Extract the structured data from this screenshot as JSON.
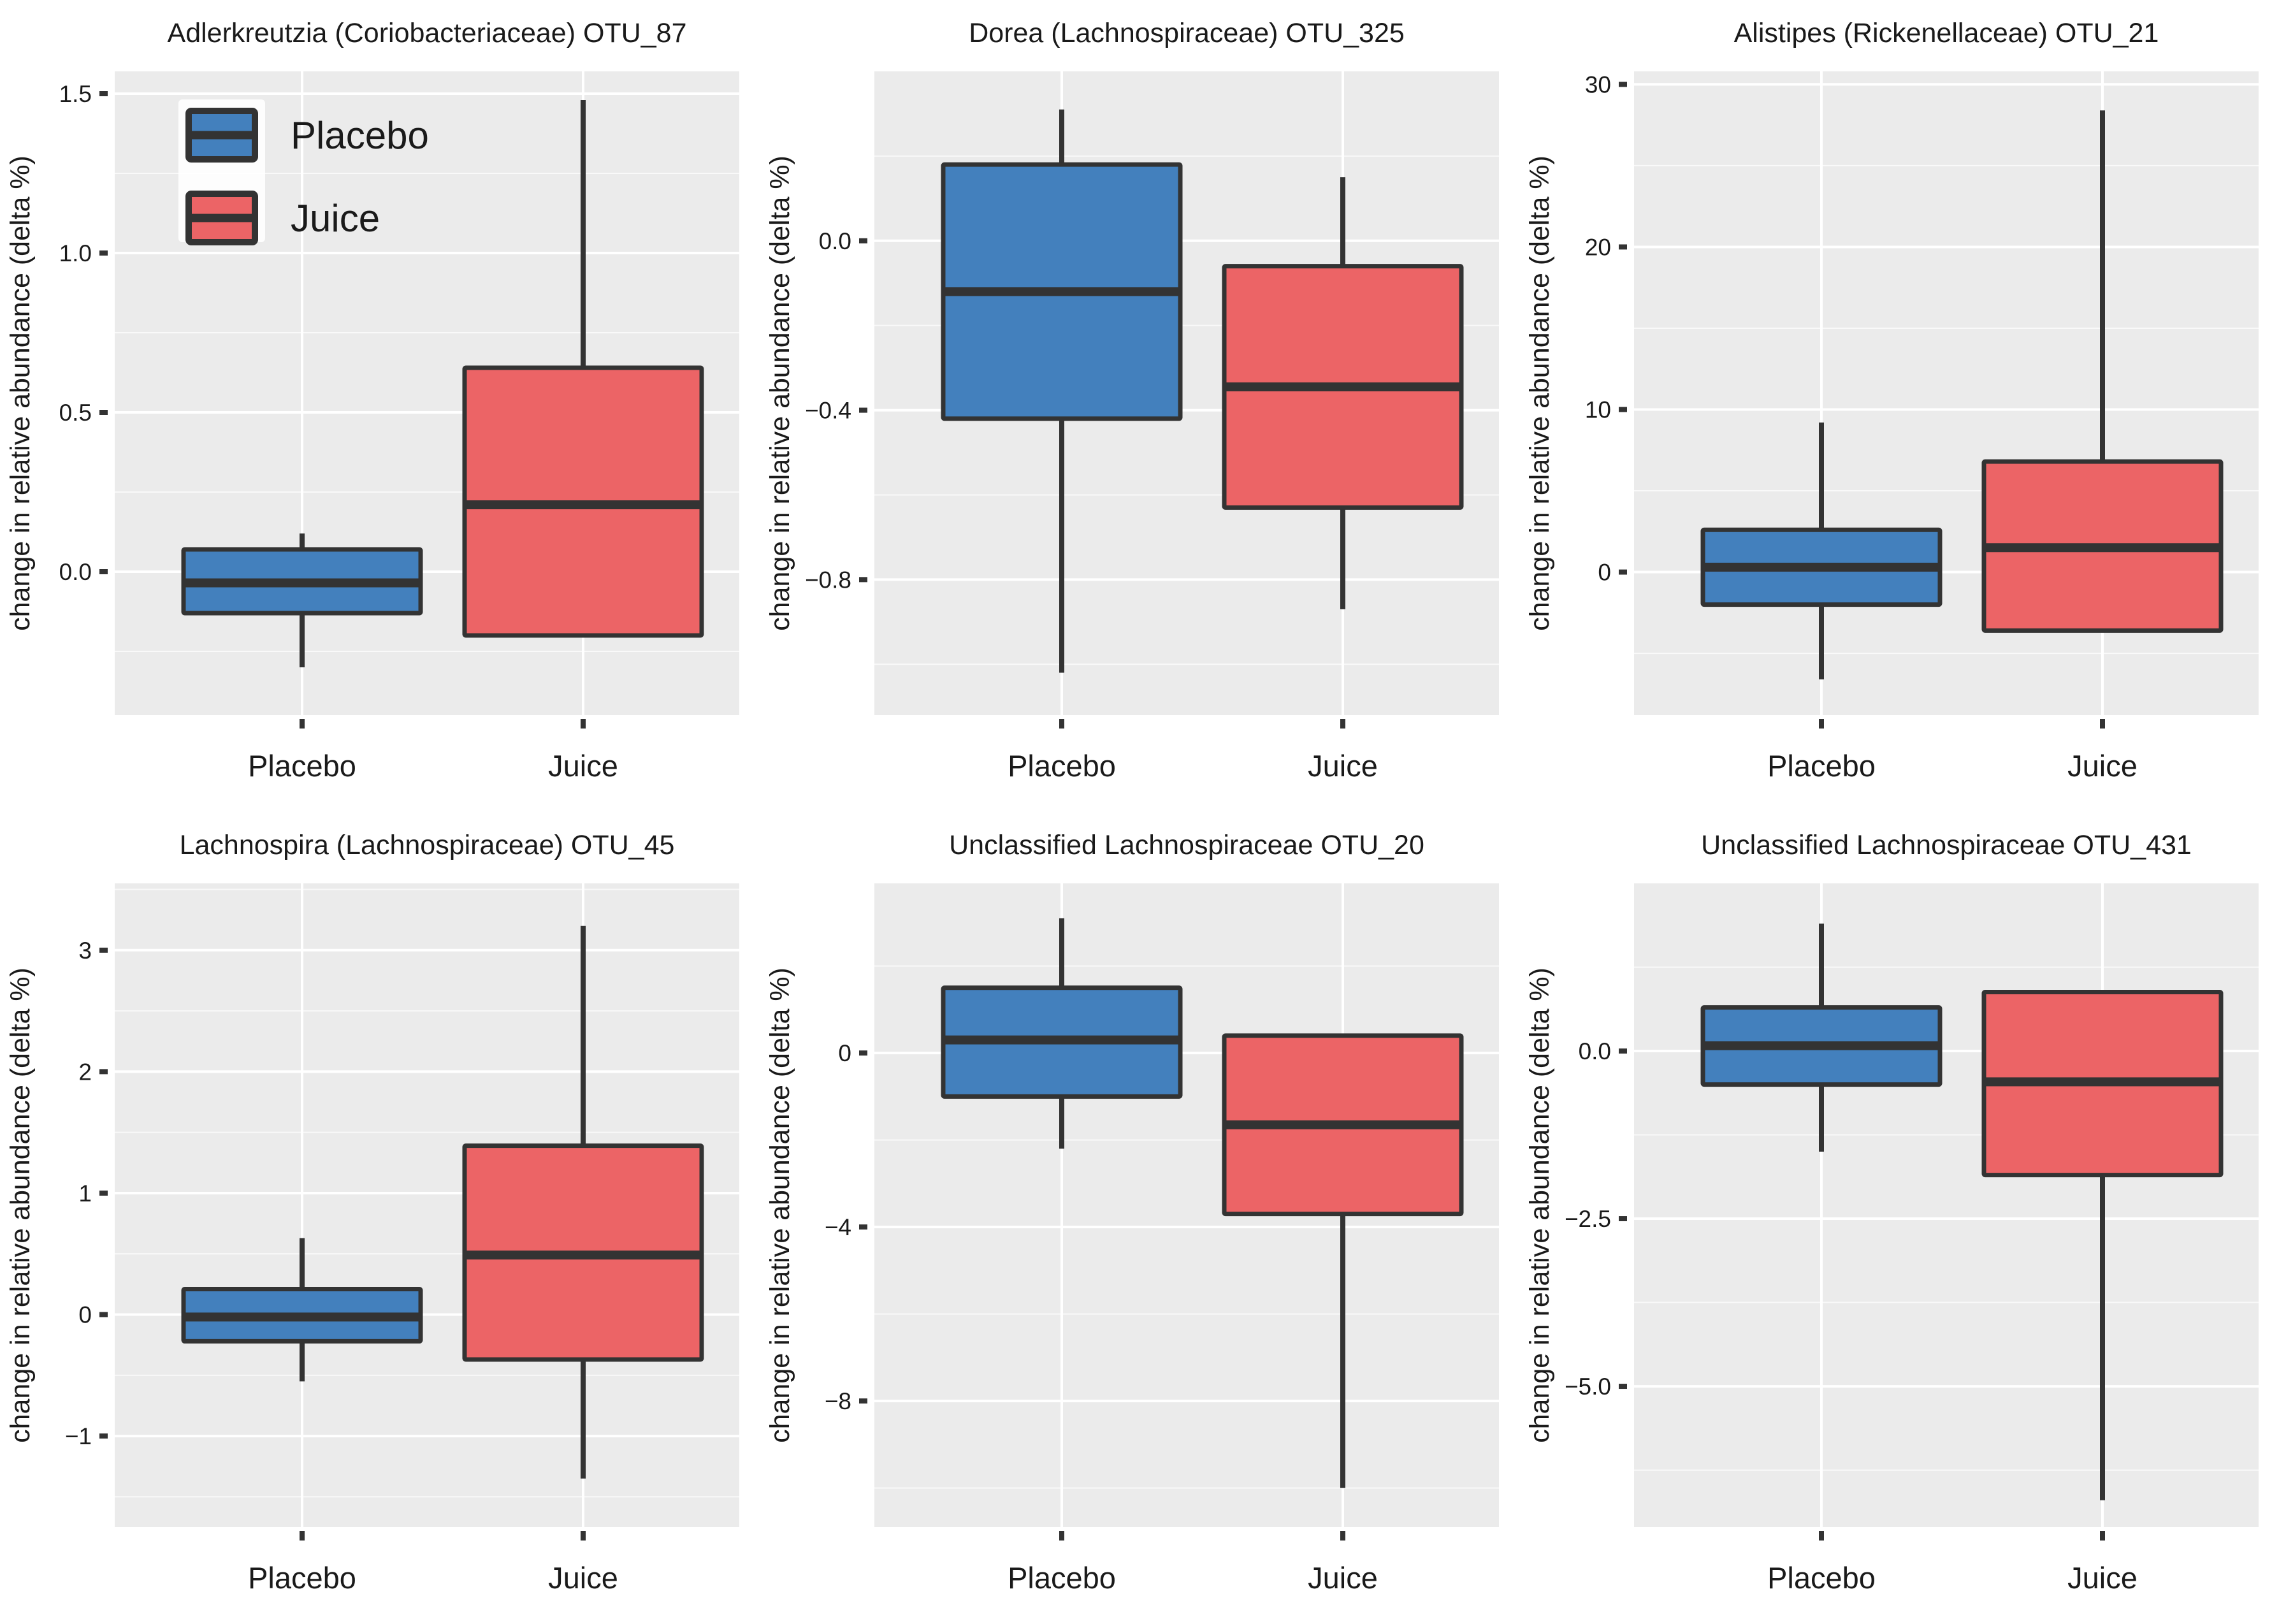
{
  "figure": {
    "background": "#ffffff",
    "panel_background": "#ebebeb",
    "grid_major_color": "#ffffff",
    "grid_minor_color": "#f7f7f7",
    "box_border_color": "#333333",
    "text_color": "#1a1a1a",
    "tick_color": "#333333"
  },
  "colors": {
    "placebo": "#4380bd",
    "juice": "#ec6466"
  },
  "legend": {
    "panel_index": 0,
    "position": "top-left",
    "entries": [
      {
        "label": "Placebo",
        "color_key": "placebo"
      },
      {
        "label": "Juice",
        "color_key": "juice"
      }
    ]
  },
  "chart_data": [
    {
      "type": "boxplot",
      "title": "Adlerkreutzia (Coriobacteriaceae) OTU_87",
      "ylabel": "change in relative abundance (delta %)",
      "categories": [
        "Placebo",
        "Juice"
      ],
      "ylim": [
        -0.45,
        1.57
      ],
      "yticks": [
        {
          "value": 1.5,
          "label": "1.5"
        },
        {
          "value": 1.0,
          "label": "1.0"
        },
        {
          "value": 0.5,
          "label": "0.5"
        },
        {
          "value": 0.0,
          "label": "0.0"
        }
      ],
      "series": [
        {
          "name": "Placebo",
          "color": "placebo",
          "whislo": -0.3,
          "q1": -0.13,
          "med": -0.035,
          "q3": 0.07,
          "whishi": 0.12
        },
        {
          "name": "Juice",
          "color": "juice",
          "whislo": null,
          "q1": -0.2,
          "med": 0.21,
          "q3": 0.64,
          "whishi": 1.48
        }
      ]
    },
    {
      "type": "boxplot",
      "title": "Dorea (Lachnospiraceae) OTU_325",
      "ylabel": "change in relative abundance (delta %)",
      "categories": [
        "Placebo",
        "Juice"
      ],
      "ylim": [
        -1.12,
        0.4
      ],
      "yticks": [
        {
          "value": 0.0,
          "label": "0.0"
        },
        {
          "value": -0.4,
          "label": "−0.4"
        },
        {
          "value": -0.8,
          "label": "−0.8"
        }
      ],
      "series": [
        {
          "name": "Placebo",
          "color": "placebo",
          "whislo": -1.02,
          "q1": -0.42,
          "med": -0.12,
          "q3": 0.18,
          "whishi": 0.31
        },
        {
          "name": "Juice",
          "color": "juice",
          "whislo": -0.87,
          "q1": -0.63,
          "med": -0.345,
          "q3": -0.06,
          "whishi": 0.15
        }
      ]
    },
    {
      "type": "boxplot",
      "title": "Alistipes (Rickenellaceae) OTU_21",
      "ylabel": "change in relative abundance (delta %)",
      "categories": [
        "Placebo",
        "Juice"
      ],
      "ylim": [
        -8.8,
        30.8
      ],
      "yticks": [
        {
          "value": 30,
          "label": "30"
        },
        {
          "value": 20,
          "label": "20"
        },
        {
          "value": 10,
          "label": "10"
        },
        {
          "value": 0,
          "label": "0"
        }
      ],
      "series": [
        {
          "name": "Placebo",
          "color": "placebo",
          "whislo": -6.6,
          "q1": -2.0,
          "med": 0.3,
          "q3": 2.6,
          "whishi": 9.2
        },
        {
          "name": "Juice",
          "color": "juice",
          "whislo": null,
          "q1": -3.6,
          "med": 1.5,
          "q3": 6.8,
          "whishi": 28.4
        }
      ]
    },
    {
      "type": "boxplot",
      "title": "Lachnospira (Lachnospiraceae) OTU_45",
      "ylabel": "change in relative abundance (delta %)",
      "categories": [
        "Placebo",
        "Juice"
      ],
      "ylim": [
        -1.75,
        3.55
      ],
      "yticks": [
        {
          "value": 3,
          "label": "3"
        },
        {
          "value": 2,
          "label": "2"
        },
        {
          "value": 1,
          "label": "1"
        },
        {
          "value": 0,
          "label": "0"
        },
        {
          "value": -1,
          "label": "−1"
        }
      ],
      "series": [
        {
          "name": "Placebo",
          "color": "placebo",
          "whislo": -0.55,
          "q1": -0.22,
          "med": -0.02,
          "q3": 0.21,
          "whishi": 0.63
        },
        {
          "name": "Juice",
          "color": "juice",
          "whislo": -1.35,
          "q1": -0.37,
          "med": 0.49,
          "q3": 1.39,
          "whishi": 3.2
        }
      ]
    },
    {
      "type": "boxplot",
      "title": "Unclassified Lachnospiraceae OTU_20",
      "ylabel": "change in relative abundance (delta %)",
      "categories": [
        "Placebo",
        "Juice"
      ],
      "ylim": [
        -10.9,
        3.9
      ],
      "yticks": [
        {
          "value": 0,
          "label": "0"
        },
        {
          "value": -4,
          "label": "−4"
        },
        {
          "value": -8,
          "label": "−8"
        }
      ],
      "series": [
        {
          "name": "Placebo",
          "color": "placebo",
          "whislo": -2.2,
          "q1": -1.0,
          "med": 0.3,
          "q3": 1.5,
          "whishi": 3.1
        },
        {
          "name": "Juice",
          "color": "juice",
          "whislo": -10.0,
          "q1": -3.7,
          "med": -1.65,
          "q3": 0.4,
          "whishi": null
        }
      ]
    },
    {
      "type": "boxplot",
      "title": "Unclassified Lachnospiraceae OTU_431",
      "ylabel": "change in relative abundance (delta %)",
      "categories": [
        "Placebo",
        "Juice"
      ],
      "ylim": [
        -7.1,
        2.5
      ],
      "yticks": [
        {
          "value": 0.0,
          "label": "0.0"
        },
        {
          "value": -2.5,
          "label": "−2.5"
        },
        {
          "value": -5.0,
          "label": "−5.0"
        }
      ],
      "series": [
        {
          "name": "Placebo",
          "color": "placebo",
          "whislo": -1.5,
          "q1": -0.5,
          "med": 0.08,
          "q3": 0.65,
          "whishi": 1.9
        },
        {
          "name": "Juice",
          "color": "juice",
          "whislo": -6.7,
          "q1": -1.85,
          "med": -0.46,
          "q3": 0.88,
          "whishi": null
        }
      ]
    }
  ]
}
